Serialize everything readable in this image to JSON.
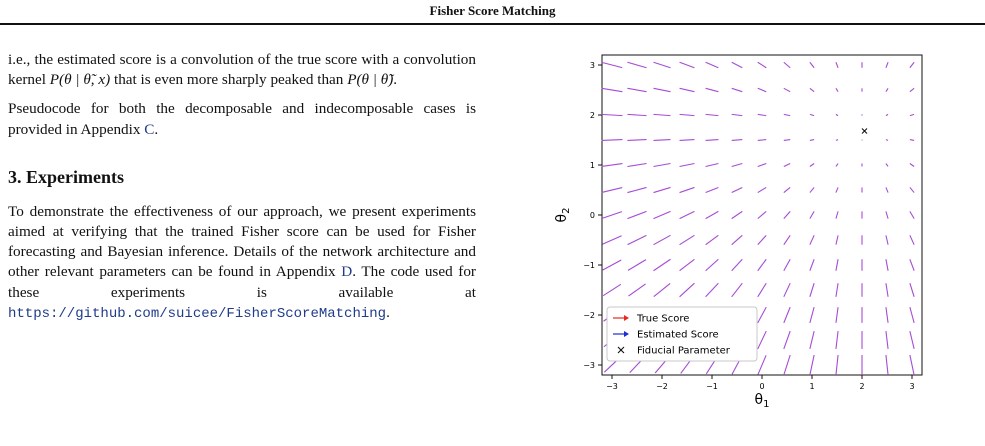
{
  "header": {
    "title": "Fisher Score Matching"
  },
  "left": {
    "para1_a": "i.e., the estimated score is a convolution of the true score with a convolution kernel ",
    "para1_math1": "P(θ | θ̃, x)",
    "para1_b": " that is even more sharply peaked than ",
    "para1_math2": "P(θ | θ̃)",
    "para1_c": ".",
    "para2_a": "Pseudocode for both the decomposable and indecomposable cases is provided in Appendix ",
    "para2_link": "C",
    "para2_b": ".",
    "section_title": "3. Experiments",
    "para3_a": "To demonstrate the effectiveness of our approach, we present experiments aimed at verifying that the trained Fisher score can be used for Fisher forecasting and Bayesian inference. Details of the network architecture and other relevant parameters can be found in Appendix ",
    "para3_link": "D",
    "para3_b": ". The code used for these experiments is available at ",
    "para3_url": "https://github.com/suicee/FisherScoreMatching",
    "para3_c": "."
  },
  "chart_data": {
    "type": "quiver",
    "xlabel": "θ1",
    "ylabel": "θ2",
    "xlim": [
      -3.2,
      3.2
    ],
    "ylim": [
      -3.2,
      3.2
    ],
    "xticks": [
      "−3",
      "−2",
      "−1",
      "0",
      "1",
      "2",
      "3"
    ],
    "yticks": [
      "−3",
      "−2",
      "−1",
      "0",
      "1",
      "2",
      "3"
    ],
    "grid": false,
    "field_center": [
      2,
      1.7
    ],
    "grid_range": [
      -3,
      3
    ],
    "grid_count": 13,
    "fiducial": {
      "x": 2.05,
      "y": 1.68
    },
    "legend": {
      "position": "lower-left",
      "entries": [
        {
          "label": "True Score",
          "color": "#e8281e",
          "marker": "arrow"
        },
        {
          "label": "Estimated Score",
          "color": "#1f2bd6",
          "marker": "arrow"
        },
        {
          "label": "Fiducial Parameter",
          "color": "#111111",
          "marker": "x"
        }
      ]
    },
    "arrow_color": "#a64bd6"
  },
  "caption_fragment": ""
}
